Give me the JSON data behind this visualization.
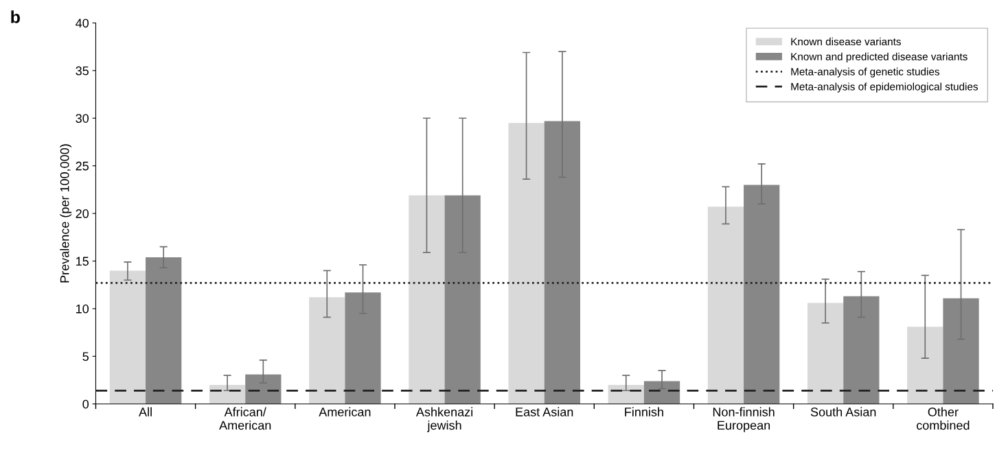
{
  "chart_data": {
    "type": "bar",
    "ylabel": "Prevalence (per 100,000)",
    "annotations": [
      "b"
    ],
    "categories": [
      "All",
      "African/\nAmerican",
      "American",
      "Ashkenazi\njewish",
      "East Asian",
      "Finnish",
      "Non-finnish\nEuropean",
      "South Asian",
      "Other\ncombined"
    ],
    "series": [
      {
        "name": "Known disease variants",
        "color": "#d9d9d9",
        "values": [
          14.0,
          2.0,
          11.2,
          21.9,
          29.5,
          2.0,
          20.7,
          10.6,
          8.1
        ],
        "errors": [
          [
            13.0,
            14.9
          ],
          [
            1.4,
            3.0
          ],
          [
            9.1,
            14.0
          ],
          [
            15.9,
            30.0
          ],
          [
            23.6,
            36.9
          ],
          [
            1.4,
            3.0
          ],
          [
            18.9,
            22.8
          ],
          [
            8.5,
            13.1
          ],
          [
            4.8,
            13.5
          ]
        ]
      },
      {
        "name": "Known and predicted disease variants",
        "color": "#878787",
        "values": [
          15.4,
          3.1,
          11.7,
          21.9,
          29.7,
          2.4,
          23.0,
          11.3,
          11.1
        ],
        "errors": [
          [
            14.3,
            16.5
          ],
          [
            2.2,
            4.6
          ],
          [
            9.5,
            14.6
          ],
          [
            15.9,
            30.0
          ],
          [
            23.8,
            37.0
          ],
          [
            1.6,
            3.5
          ],
          [
            21.0,
            25.2
          ],
          [
            9.1,
            13.9
          ],
          [
            6.8,
            18.3
          ]
        ]
      }
    ],
    "ref_lines": [
      {
        "axis": "y",
        "value": 12.7,
        "label": "Meta-analysis of genetic studies",
        "line_style": "dotted",
        "color": "#222222"
      },
      {
        "axis": "y",
        "value": 1.4,
        "label": "Meta-analysis of epidemiological studies",
        "line_style": "dashed",
        "color": "#222222"
      }
    ],
    "ylim": [
      0,
      40
    ],
    "yticks": [
      0,
      5,
      10,
      15,
      20,
      25,
      30,
      35,
      40
    ],
    "legend": "top right",
    "grid": false
  }
}
